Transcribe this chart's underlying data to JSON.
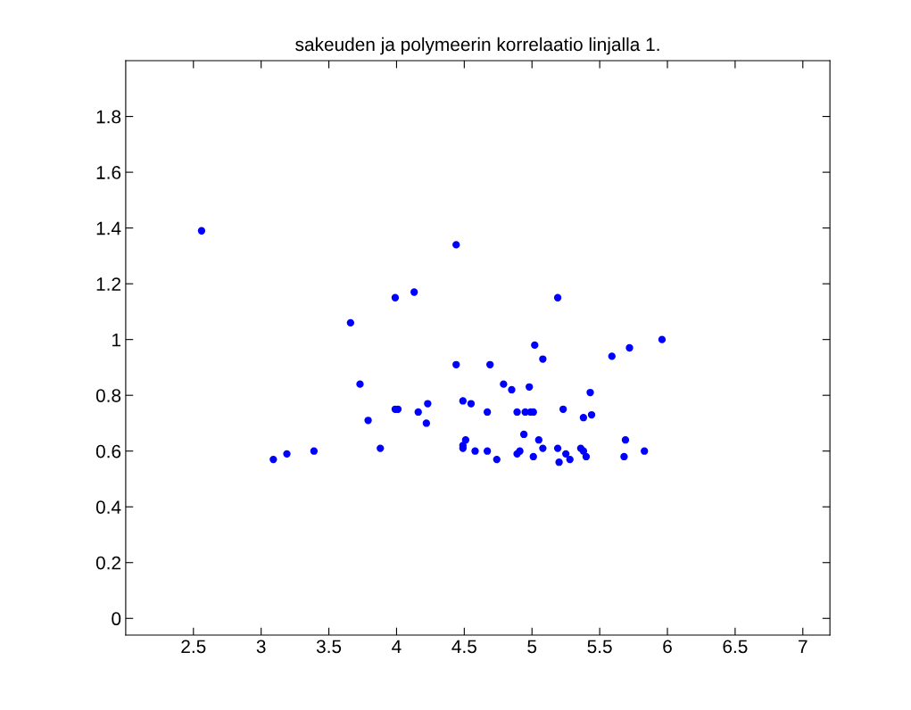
{
  "chart_data": {
    "type": "scatter",
    "title": "sakeuden ja polymeerin korrelaatio linjalla 1.",
    "x": [
      2.56,
      4.44,
      3.99,
      4.13,
      5.19,
      3.66,
      5.02,
      5.08,
      5.59,
      5.72,
      5.96,
      4.44,
      4.69,
      3.73,
      4.79,
      4.85,
      4.98,
      5.43,
      3.99,
      4.01,
      4.23,
      4.16,
      4.22,
      3.79,
      3.88,
      4.49,
      4.55,
      4.67,
      4.89,
      4.95,
      4.99,
      5.01,
      5.23,
      5.38,
      5.44,
      4.94,
      4.51,
      4.49,
      4.49,
      4.58,
      4.67,
      4.74,
      4.89,
      4.91,
      5.01,
      5.05,
      5.08,
      5.19,
      5.2,
      5.25,
      5.28,
      5.36,
      5.38,
      5.4,
      5.68,
      5.69,
      5.83,
      3.09,
      3.19,
      3.39
    ],
    "series": [
      {
        "color": "#0000ff",
        "values": [
          1.39,
          1.34,
          1.15,
          1.17,
          1.15,
          1.06,
          0.98,
          0.93,
          0.94,
          0.97,
          1.0,
          0.91,
          0.91,
          0.84,
          0.84,
          0.82,
          0.83,
          0.81,
          0.75,
          0.75,
          0.77,
          0.74,
          0.7,
          0.71,
          0.61,
          0.78,
          0.77,
          0.74,
          0.74,
          0.74,
          0.74,
          0.74,
          0.75,
          0.72,
          0.73,
          0.66,
          0.64,
          0.62,
          0.61,
          0.6,
          0.6,
          0.57,
          0.59,
          0.6,
          0.58,
          0.64,
          0.61,
          0.61,
          0.56,
          0.59,
          0.57,
          0.61,
          0.6,
          0.58,
          0.58,
          0.64,
          0.6,
          0.57,
          0.59,
          0.6
        ]
      }
    ],
    "xlim": [
      2.0,
      7.2
    ],
    "ylim": [
      -0.06,
      2.0
    ],
    "xticks": [
      2.5,
      3,
      3.5,
      4,
      4.5,
      5,
      5.5,
      6,
      6.5,
      7
    ],
    "yticks": [
      0,
      0.2,
      0.4,
      0.6,
      0.8,
      1,
      1.2,
      1.4,
      1.6,
      1.8
    ],
    "marker": "circle",
    "grid": false,
    "legend": false
  }
}
